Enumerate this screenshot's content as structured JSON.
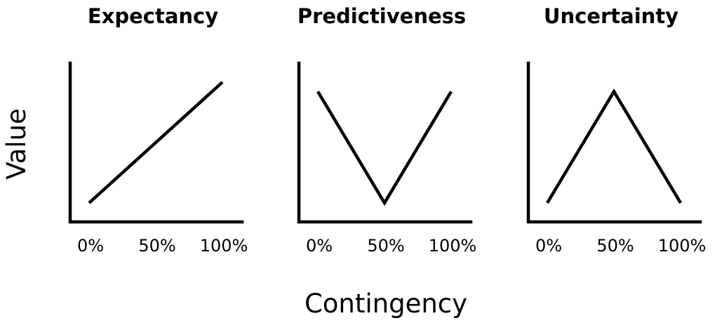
{
  "figure": {
    "ylabel": "Value",
    "xlabel": "Contingency"
  },
  "chart_data": [
    {
      "type": "line",
      "title": "Expectancy",
      "categories": [
        "0%",
        "50%",
        "100%"
      ],
      "series": [
        {
          "values": [
            0.05,
            0.5,
            0.95
          ]
        }
      ],
      "ylim": [
        0,
        1
      ],
      "grid": false,
      "xlabel": "",
      "ylabel": ""
    },
    {
      "type": "line",
      "title": "Predictiveness",
      "categories": [
        "0%",
        "50%",
        "100%"
      ],
      "series": [
        {
          "values": [
            0.88,
            0.05,
            0.88
          ]
        }
      ],
      "ylim": [
        0,
        1
      ],
      "grid": false,
      "xlabel": "",
      "ylabel": ""
    },
    {
      "type": "line",
      "title": "Uncertainty",
      "categories": [
        "0%",
        "50%",
        "100%"
      ],
      "series": [
        {
          "values": [
            0.05,
            0.88,
            0.05
          ]
        }
      ],
      "ylim": [
        0,
        1
      ],
      "grid": false,
      "xlabel": "",
      "ylabel": ""
    }
  ]
}
